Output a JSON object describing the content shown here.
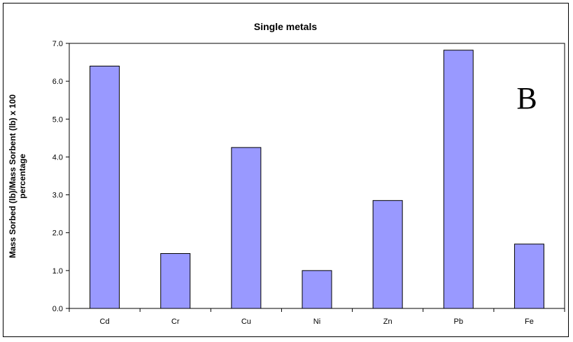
{
  "chart_data": {
    "type": "bar",
    "title": "Single metals",
    "ylabel_lines": [
      "Mass Sorbed (lb)/Mass Sorbent (lb) x 100",
      "percentage"
    ],
    "xlabel": "",
    "categories": [
      "Cd",
      "Cr",
      "Cu",
      "Ni",
      "Zn",
      "Pb",
      "Fe"
    ],
    "values": [
      6.4,
      1.45,
      4.25,
      1.0,
      2.85,
      6.82,
      1.7
    ],
    "ylim": [
      0,
      7.0
    ],
    "yticks": [
      "0.0",
      "1.0",
      "2.0",
      "3.0",
      "4.0",
      "5.0",
      "6.0",
      "7.0"
    ],
    "grid": false,
    "annotation": "B",
    "bar_color": "#9999ff",
    "bar_edge_color": "#000000"
  }
}
